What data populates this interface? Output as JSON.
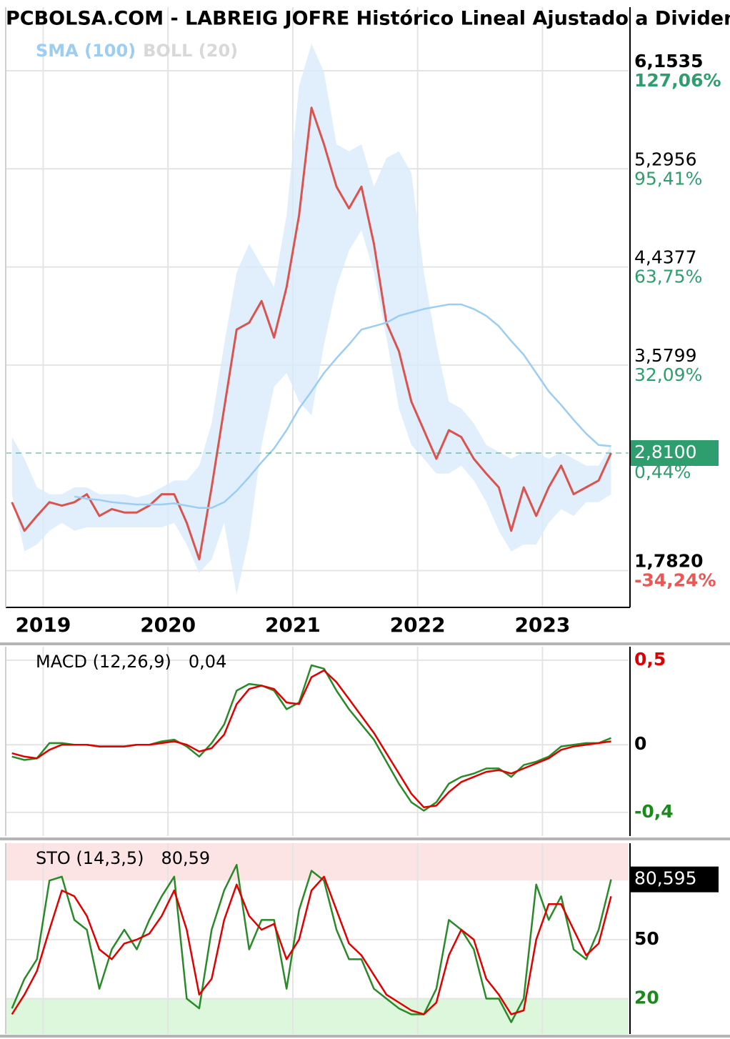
{
  "chart_data": [
    {
      "type": "line",
      "title": "PCBOLSA.COM - LABREIG JOFRE Histórico Lineal Ajustado a Dividendos",
      "x": [
        2018.75,
        2018.85,
        2018.95,
        2019.05,
        2019.15,
        2019.25,
        2019.35,
        2019.45,
        2019.55,
        2019.65,
        2019.75,
        2019.85,
        2019.95,
        2020.05,
        2020.15,
        2020.25,
        2020.35,
        2020.45,
        2020.55,
        2020.65,
        2020.75,
        2020.85,
        2020.95,
        2021.05,
        2021.15,
        2021.25,
        2021.35,
        2021.45,
        2021.55,
        2021.65,
        2021.75,
        2021.85,
        2021.95,
        2022.05,
        2022.15,
        2022.25,
        2022.35,
        2022.45,
        2022.55,
        2022.65,
        2022.75,
        2022.85,
        2022.95,
        2023.05,
        2023.15,
        2023.25,
        2023.35,
        2023.45,
        2023.55
      ],
      "xlim": [
        2018.7,
        2023.69
      ],
      "xticks": [
        2019,
        2020,
        2021,
        2022,
        2023
      ],
      "ylim": [
        1.46,
        6.71
      ],
      "yticks": [
        {
          "value": 6.1535,
          "label": "6,1535"
        },
        {
          "value": 5.2956,
          "label": "5,2956"
        },
        {
          "value": 4.4377,
          "label": "4,4377"
        },
        {
          "value": 3.5799,
          "label": "3,5799"
        },
        {
          "value": 1.782,
          "label": "1,7820"
        }
      ],
      "percent_labels": [
        {
          "value": 127.06,
          "label": "127,06%"
        },
        {
          "value": 95.41,
          "label": "95,41%"
        },
        {
          "value": 63.75,
          "label": "63,75%"
        },
        {
          "value": 32.09,
          "label": "32,09%"
        },
        {
          "value": -34.24,
          "label": "-34,24%"
        }
      ],
      "grid": true,
      "last": {
        "value": 2.81,
        "label": "2,8100",
        "color": "#2e9e6e",
        "percent": {
          "value": 0.44,
          "label": "0,44%"
        }
      },
      "series": [
        {
          "color": "#d9534f",
          "values": [
            2.38,
            2.13,
            2.26,
            2.38,
            2.35,
            2.38,
            2.45,
            2.26,
            2.32,
            2.29,
            2.29,
            2.35,
            2.45,
            2.45,
            2.2,
            1.88,
            2.51,
            3.2,
            3.89,
            3.95,
            4.14,
            3.82,
            4.26,
            4.89,
            5.83,
            5.51,
            5.14,
            4.95,
            5.14,
            4.64,
            3.95,
            3.7,
            3.26,
            3.01,
            2.76,
            3.01,
            2.95,
            2.76,
            2.63,
            2.51,
            2.13,
            2.51,
            2.26,
            2.51,
            2.7,
            2.45,
            2.51,
            2.57,
            2.81
          ]
        },
        {
          "name": "SMA (100)",
          "color": "#9ccdf2",
          "values": [
            null,
            null,
            null,
            null,
            null,
            2.43,
            2.41,
            2.4,
            2.38,
            2.37,
            2.36,
            2.36,
            2.36,
            2.37,
            2.35,
            2.33,
            2.33,
            2.38,
            2.48,
            2.6,
            2.73,
            2.85,
            3.01,
            3.2,
            3.35,
            3.51,
            3.64,
            3.76,
            3.89,
            3.92,
            3.95,
            4.01,
            4.04,
            4.07,
            4.09,
            4.11,
            4.11,
            4.07,
            4.01,
            3.92,
            3.79,
            3.67,
            3.51,
            3.35,
            3.23,
            3.1,
            2.98,
            2.88,
            2.87
          ]
        },
        {
          "name": "BOLL (20)",
          "color": "#d8d8d8",
          "fill": "#d8ebfa",
          "upper": [
            2.95,
            2.76,
            2.51,
            2.45,
            2.45,
            2.51,
            2.51,
            2.45,
            2.45,
            2.45,
            2.42,
            2.45,
            2.51,
            2.57,
            2.57,
            2.7,
            3.07,
            3.76,
            4.39,
            4.64,
            4.45,
            4.26,
            4.89,
            6.02,
            6.39,
            6.14,
            5.51,
            5.45,
            5.51,
            5.14,
            5.39,
            5.45,
            5.26,
            4.39,
            3.76,
            3.26,
            3.2,
            3.07,
            2.88,
            2.82,
            2.76,
            2.82,
            2.82,
            2.76,
            2.82,
            2.76,
            2.7,
            2.7,
            2.88
          ],
          "lower": [
            2.45,
            1.95,
            2.01,
            2.13,
            2.2,
            2.13,
            2.16,
            2.16,
            2.16,
            2.16,
            2.16,
            2.16,
            2.16,
            2.2,
            2.01,
            1.76,
            1.88,
            2.2,
            1.57,
            2.07,
            2.88,
            3.39,
            3.51,
            3.26,
            3.14,
            3.76,
            4.26,
            4.58,
            4.76,
            4.39,
            3.82,
            3.2,
            2.88,
            2.76,
            2.63,
            2.63,
            2.7,
            2.57,
            2.38,
            2.13,
            1.95,
            2.01,
            2.01,
            2.2,
            2.32,
            2.26,
            2.38,
            2.38,
            2.45
          ]
        }
      ]
    },
    {
      "type": "line",
      "title": "MACD (12,26,9)",
      "value_label": "0,04",
      "x": [
        2018.75,
        2018.85,
        2018.95,
        2019.05,
        2019.15,
        2019.25,
        2019.35,
        2019.45,
        2019.55,
        2019.65,
        2019.75,
        2019.85,
        2019.95,
        2020.05,
        2020.15,
        2020.25,
        2020.35,
        2020.45,
        2020.55,
        2020.65,
        2020.75,
        2020.85,
        2020.95,
        2021.05,
        2021.15,
        2021.25,
        2021.35,
        2021.45,
        2021.55,
        2021.65,
        2021.75,
        2021.85,
        2021.95,
        2022.05,
        2022.15,
        2022.25,
        2022.35,
        2022.45,
        2022.55,
        2022.65,
        2022.75,
        2022.85,
        2022.95,
        2023.05,
        2023.15,
        2023.25,
        2023.35,
        2023.45,
        2023.55
      ],
      "xlim": [
        2018.7,
        2023.69
      ],
      "ylim": [
        -0.54,
        0.58
      ],
      "yticks": [
        {
          "value": 0.5,
          "label": "0,5"
        },
        0,
        {
          "value": -0.4,
          "label": "-0,4"
        }
      ],
      "tick_colors": [
        "#e00000",
        "#000000",
        "#1a8a1a"
      ],
      "grid": true,
      "series": [
        {
          "color": "#2a8a2a",
          "values": [
            -0.07,
            -0.09,
            -0.08,
            0.01,
            0.01,
            0,
            0,
            -0.01,
            -0.01,
            -0.01,
            0,
            0,
            0.02,
            0.03,
            -0.01,
            -0.07,
            0.01,
            0.12,
            0.32,
            0.36,
            0.35,
            0.32,
            0.21,
            0.25,
            0.47,
            0.45,
            0.32,
            0.21,
            0.12,
            0.03,
            -0.1,
            -0.23,
            -0.34,
            -0.39,
            -0.34,
            -0.23,
            -0.19,
            -0.17,
            -0.14,
            -0.14,
            -0.19,
            -0.12,
            -0.1,
            -0.07,
            -0.01,
            0,
            0.01,
            0.01,
            0.04
          ]
        },
        {
          "color": "#e00000",
          "values": [
            -0.05,
            -0.07,
            -0.08,
            -0.03,
            0,
            0,
            0,
            -0.01,
            -0.01,
            -0.01,
            0,
            0,
            0.01,
            0.02,
            0,
            -0.04,
            -0.02,
            0.06,
            0.24,
            0.33,
            0.35,
            0.33,
            0.25,
            0.24,
            0.4,
            0.44,
            0.37,
            0.27,
            0.17,
            0.07,
            -0.05,
            -0.17,
            -0.29,
            -0.37,
            -0.36,
            -0.28,
            -0.22,
            -0.19,
            -0.16,
            -0.15,
            -0.17,
            -0.14,
            -0.11,
            -0.08,
            -0.03,
            -0.01,
            0,
            0.01,
            0.02
          ]
        }
      ]
    },
    {
      "type": "line",
      "title": "STO (14,3,5)",
      "value_label": "80,59",
      "x": [
        2018.75,
        2018.85,
        2018.95,
        2019.05,
        2019.15,
        2019.25,
        2019.35,
        2019.45,
        2019.55,
        2019.65,
        2019.75,
        2019.85,
        2019.95,
        2020.05,
        2020.15,
        2020.25,
        2020.35,
        2020.45,
        2020.55,
        2020.65,
        2020.75,
        2020.85,
        2020.95,
        2021.05,
        2021.15,
        2021.25,
        2021.35,
        2021.45,
        2021.55,
        2021.65,
        2021.75,
        2021.85,
        2021.95,
        2022.05,
        2022.15,
        2022.25,
        2022.35,
        2022.45,
        2022.55,
        2022.65,
        2022.75,
        2022.85,
        2022.95,
        2023.05,
        2023.15,
        2023.25,
        2023.35,
        2023.45,
        2023.55
      ],
      "xlim": [
        2018.7,
        2023.69
      ],
      "ylim": [
        2,
        99
      ],
      "yticks": [
        50,
        20
      ],
      "tick_colors": [
        "#000000",
        "#1a8a1a"
      ],
      "grid": true,
      "overbought": 80,
      "oversold": 20,
      "overbought_color": "#fde4e4",
      "oversold_color": "#ddf7dd",
      "last": {
        "value": 80.595,
        "label": "80,595",
        "color": "#000000"
      },
      "series": [
        {
          "color": "#2a8a2a",
          "values": [
            15,
            30,
            40,
            80,
            82,
            60,
            55,
            25,
            45,
            55,
            45,
            60,
            72,
            82,
            20,
            15,
            55,
            75,
            88,
            45,
            60,
            60,
            25,
            65,
            85,
            80,
            55,
            40,
            40,
            25,
            20,
            15,
            12,
            12,
            25,
            60,
            55,
            45,
            20,
            20,
            8,
            20,
            78,
            60,
            72,
            45,
            40,
            55,
            80.595
          ]
        },
        {
          "color": "#e00000",
          "values": [
            12,
            22,
            34,
            55,
            75,
            72,
            62,
            45,
            40,
            48,
            50,
            53,
            62,
            75,
            55,
            22,
            30,
            60,
            78,
            62,
            55,
            58,
            40,
            50,
            75,
            82,
            65,
            48,
            42,
            32,
            22,
            18,
            14,
            12,
            18,
            42,
            55,
            50,
            30,
            22,
            12,
            14,
            50,
            68,
            68,
            55,
            42,
            48,
            72
          ]
        }
      ]
    }
  ]
}
